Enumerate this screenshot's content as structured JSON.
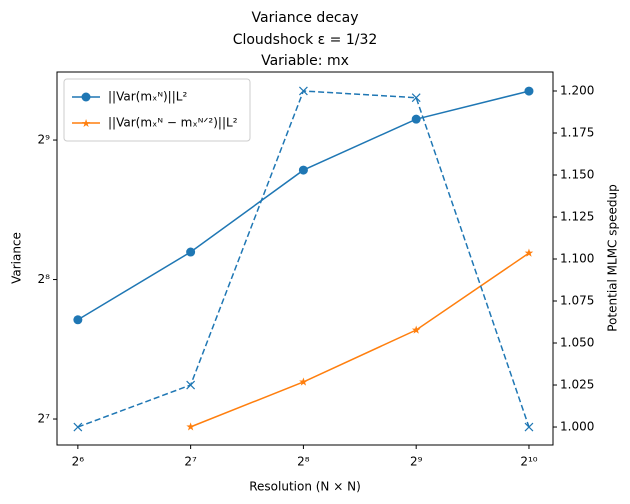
{
  "chart_data": {
    "type": "line",
    "title": [
      "Variance decay",
      "Cloudshock ε = 1/32",
      "Variable: mx"
    ],
    "xlabel": "Resolution (N × N)",
    "ylabel": "Variance",
    "y2label": "Potential MLMC speedup",
    "log_base": 2,
    "xlog": true,
    "ylog": true,
    "x": [
      64,
      128,
      256,
      512,
      1024
    ],
    "xlim": [
      56.3,
      1187
    ],
    "ylim": [
      112.5,
      718
    ],
    "y2lim": [
      0.9893,
      1.2113
    ],
    "xticks": [
      {
        "value": 64,
        "label": "2⁶"
      },
      {
        "value": 128,
        "label": "2⁷"
      },
      {
        "value": 256,
        "label": "2⁸"
      },
      {
        "value": 512,
        "label": "2⁹"
      },
      {
        "value": 1024,
        "label": "2¹⁰"
      }
    ],
    "yticks": [
      {
        "value": 128,
        "label": "2⁷"
      },
      {
        "value": 256,
        "label": "2⁸"
      },
      {
        "value": 512,
        "label": "2⁹"
      }
    ],
    "y2ticks": [
      {
        "value": 1.0,
        "label": "1.000"
      },
      {
        "value": 1.025,
        "label": "1.025"
      },
      {
        "value": 1.05,
        "label": "1.050"
      },
      {
        "value": 1.075,
        "label": "1.075"
      },
      {
        "value": 1.1,
        "label": "1.100"
      },
      {
        "value": 1.125,
        "label": "1.125"
      },
      {
        "value": 1.15,
        "label": "1.150"
      },
      {
        "value": 1.175,
        "label": "1.175"
      },
      {
        "value": 1.2,
        "label": "1.200"
      }
    ],
    "legend": "upper left",
    "series": [
      {
        "name": "||Var(mₓᴺ)||L²",
        "color": "#1f77b4",
        "marker": "circle",
        "dashed": false,
        "values": [
          209.6,
          293.5,
          441,
          568,
          653
        ]
      },
      {
        "name": "||Var(mₓᴺ − mₓᴺᐟ²)||L²",
        "color": "#ff7f0e",
        "marker": "star",
        "dashed": false,
        "values": [
          null,
          123.1,
          153.9,
          199.2,
          292
        ]
      },
      {
        "color": "#1f77b4",
        "marker": "x",
        "dashed": true,
        "axis": "y2",
        "values": [
          1.0,
          1.025,
          1.2,
          1.196,
          1.0
        ]
      }
    ]
  }
}
